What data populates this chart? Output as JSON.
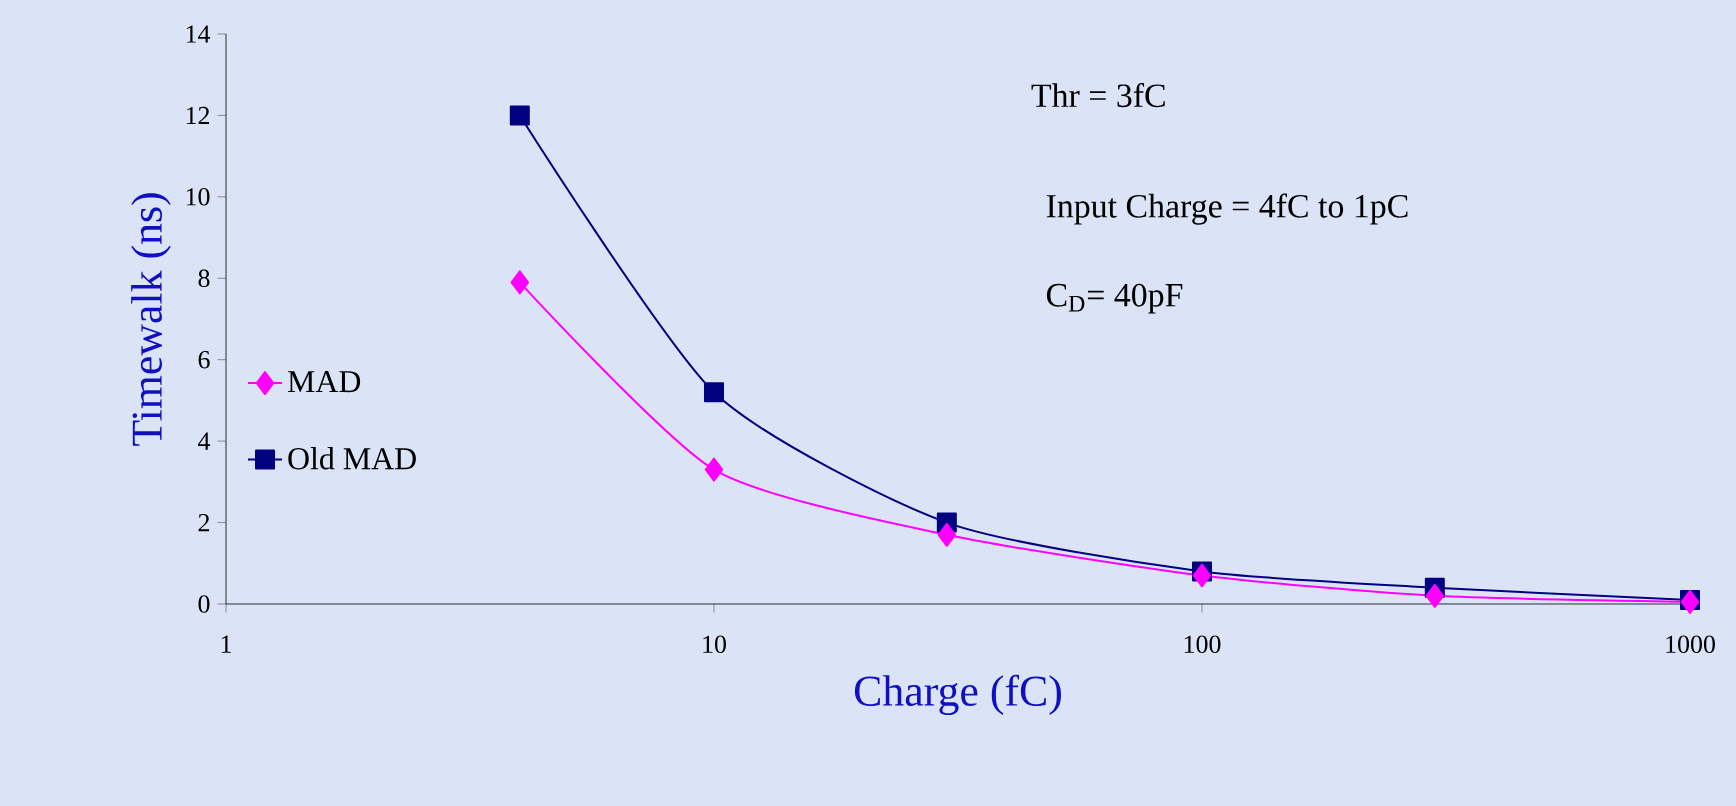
{
  "chart_data": {
    "type": "line",
    "xlabel": "Charge (fC)",
    "ylabel": "Timewalk (ns)",
    "log": "x",
    "xlim": [
      1,
      1000
    ],
    "xticks": [
      1,
      10,
      100,
      1000
    ],
    "ylim": [
      0,
      14
    ],
    "yticks": [
      0,
      2,
      4,
      6,
      8,
      10,
      12,
      14
    ],
    "grid": false,
    "legend": "left",
    "x": [
      4,
      10,
      30,
      100,
      300,
      1000
    ],
    "series": [
      {
        "name": "MAD",
        "color": "#ff00ff",
        "marker": "diamond",
        "values": [
          7.9,
          3.3,
          1.7,
          0.7,
          0.2,
          0.05
        ]
      },
      {
        "name": "Old MAD",
        "color": "#000080",
        "marker": "square",
        "values": [
          12.0,
          5.2,
          2.0,
          0.8,
          0.4,
          0.1
        ]
      }
    ],
    "annotations": [
      "Thr = 3fC",
      "Input Charge = 4fC to 1pC",
      "C$_{D}$= 40pF"
    ]
  }
}
